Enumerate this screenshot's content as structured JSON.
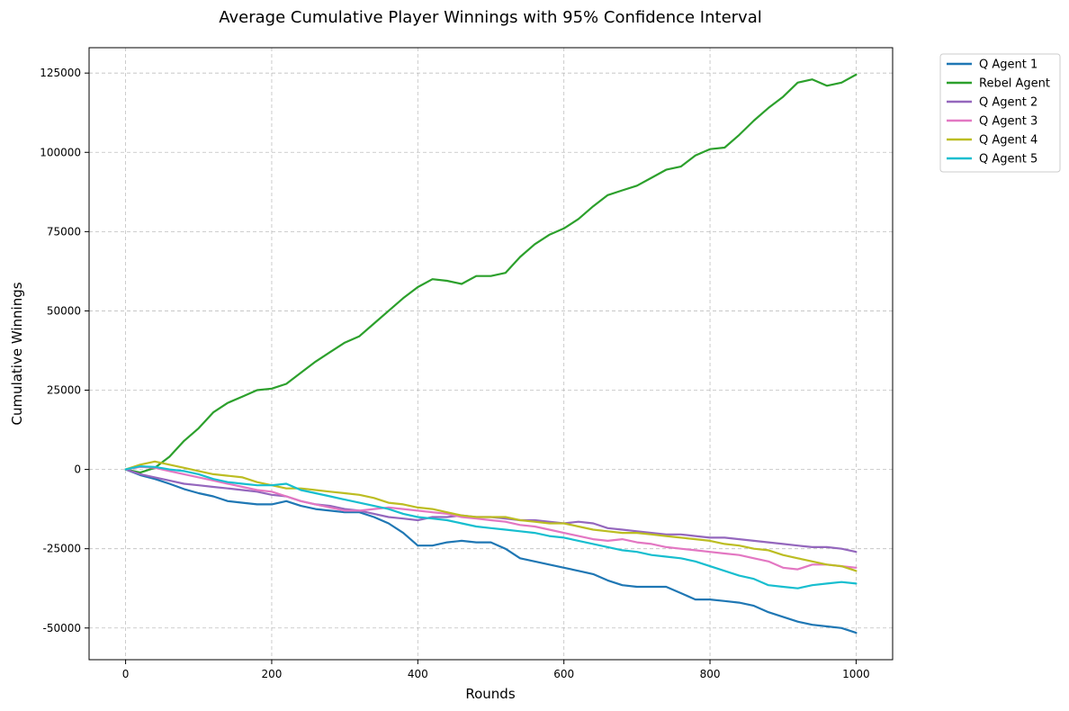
{
  "chart_data": {
    "type": "line",
    "title": "Average Cumulative Player Winnings with 95% Confidence Interval",
    "xlabel": "Rounds",
    "ylabel": "Cumulative Winnings",
    "xlim": [
      -50,
      1050
    ],
    "ylim": [
      -60000,
      133000
    ],
    "xticks": [
      0,
      200,
      400,
      600,
      800,
      1000
    ],
    "yticks": [
      -50000,
      -25000,
      0,
      25000,
      50000,
      75000,
      100000,
      125000
    ],
    "grid": true,
    "legend_position": "outside-top-right",
    "series": [
      {
        "name": "Q Agent 1",
        "color": "#1f77b4",
        "x": [
          0,
          20,
          40,
          60,
          80,
          100,
          120,
          140,
          160,
          180,
          200,
          220,
          240,
          260,
          280,
          300,
          320,
          340,
          360,
          380,
          400,
          420,
          440,
          460,
          480,
          500,
          520,
          540,
          560,
          580,
          600,
          620,
          640,
          660,
          680,
          700,
          720,
          740,
          760,
          780,
          800,
          820,
          840,
          860,
          880,
          900,
          920,
          940,
          960,
          980,
          1000
        ],
        "y": [
          0,
          -1800,
          -3000,
          -4500,
          -6200,
          -7500,
          -8500,
          -10000,
          -10500,
          -11000,
          -11000,
          -10000,
          -11500,
          -12500,
          -13000,
          -13500,
          -13500,
          -15000,
          -17000,
          -20000,
          -24000,
          -24000,
          -23000,
          -22500,
          -23000,
          -23000,
          -25000,
          -28000,
          -29000,
          -30000,
          -31000,
          -32000,
          -33000,
          -35000,
          -36500,
          -37000,
          -37000,
          -37000,
          -39000,
          -41000,
          -41000,
          -41500,
          -42000,
          -43000,
          -45000,
          -46500,
          -48000,
          -49000,
          -49500,
          -50000,
          -51500
        ]
      },
      {
        "name": "Rebel Agent",
        "color": "#2ca02c",
        "x": [
          0,
          20,
          40,
          60,
          80,
          100,
          120,
          140,
          160,
          180,
          200,
          220,
          240,
          260,
          280,
          300,
          320,
          340,
          360,
          380,
          400,
          420,
          440,
          460,
          480,
          500,
          520,
          540,
          560,
          580,
          600,
          620,
          640,
          660,
          680,
          700,
          720,
          740,
          760,
          780,
          800,
          820,
          840,
          860,
          880,
          900,
          920,
          940,
          960,
          980,
          1000
        ],
        "y": [
          0,
          -1000,
          500,
          4000,
          9000,
          13000,
          18000,
          21000,
          23000,
          25000,
          25500,
          27000,
          30500,
          34000,
          37000,
          40000,
          42000,
          46000,
          50000,
          54000,
          57500,
          60000,
          59500,
          58500,
          61000,
          61000,
          62000,
          67000,
          71000,
          74000,
          76000,
          79000,
          83000,
          86500,
          88000,
          89500,
          92000,
          94500,
          95500,
          99000,
          101000,
          101500,
          105500,
          110000,
          114000,
          117500,
          122000,
          123000,
          121000,
          122000,
          124500
        ]
      },
      {
        "name": "Q Agent 2",
        "color": "#9467bd",
        "x": [
          0,
          20,
          40,
          60,
          80,
          100,
          120,
          140,
          160,
          180,
          200,
          220,
          240,
          260,
          280,
          300,
          320,
          340,
          360,
          380,
          400,
          420,
          440,
          460,
          480,
          500,
          520,
          540,
          560,
          580,
          600,
          620,
          640,
          660,
          680,
          700,
          720,
          740,
          760,
          780,
          800,
          820,
          840,
          860,
          880,
          900,
          920,
          940,
          960,
          980,
          1000
        ],
        "y": [
          0,
          -1500,
          -2500,
          -3500,
          -4500,
          -5000,
          -5500,
          -6000,
          -6500,
          -7000,
          -8000,
          -8500,
          -10000,
          -11000,
          -11500,
          -12500,
          -13000,
          -14000,
          -15000,
          -15500,
          -16000,
          -15000,
          -15000,
          -14500,
          -15000,
          -15000,
          -15500,
          -16000,
          -16000,
          -16500,
          -17000,
          -16500,
          -17000,
          -18500,
          -19000,
          -19500,
          -20000,
          -20500,
          -20500,
          -21000,
          -21500,
          -21500,
          -22000,
          -22500,
          -23000,
          -23500,
          -24000,
          -24500,
          -24500,
          -25000,
          -26000
        ]
      },
      {
        "name": "Q Agent 3",
        "color": "#e377c2",
        "x": [
          0,
          20,
          40,
          60,
          80,
          100,
          120,
          140,
          160,
          180,
          200,
          220,
          240,
          260,
          280,
          300,
          320,
          340,
          360,
          380,
          400,
          420,
          440,
          460,
          480,
          500,
          520,
          540,
          560,
          580,
          600,
          620,
          640,
          660,
          680,
          700,
          720,
          740,
          760,
          780,
          800,
          820,
          840,
          860,
          880,
          900,
          920,
          940,
          960,
          980,
          1000
        ],
        "y": [
          0,
          800,
          500,
          -500,
          -1500,
          -2500,
          -3500,
          -4500,
          -5500,
          -6500,
          -7000,
          -8500,
          -10000,
          -11000,
          -12000,
          -13000,
          -13000,
          -12500,
          -12000,
          -12500,
          -13000,
          -13500,
          -14000,
          -15000,
          -15500,
          -16000,
          -16500,
          -17500,
          -18000,
          -19000,
          -20000,
          -21000,
          -22000,
          -22500,
          -22000,
          -23000,
          -23500,
          -24500,
          -25000,
          -25500,
          -26000,
          -26500,
          -27000,
          -28000,
          -29000,
          -31000,
          -31500,
          -30000,
          -30000,
          -30500,
          -31000
        ]
      },
      {
        "name": "Q Agent 4",
        "color": "#bcbd22",
        "x": [
          0,
          20,
          40,
          60,
          80,
          100,
          120,
          140,
          160,
          180,
          200,
          220,
          240,
          260,
          280,
          300,
          320,
          340,
          360,
          380,
          400,
          420,
          440,
          460,
          480,
          500,
          520,
          540,
          560,
          580,
          600,
          620,
          640,
          660,
          680,
          700,
          720,
          740,
          760,
          780,
          800,
          820,
          840,
          860,
          880,
          900,
          920,
          940,
          960,
          980,
          1000
        ],
        "y": [
          0,
          1500,
          2500,
          1500,
          500,
          -500,
          -1500,
          -2000,
          -2500,
          -4000,
          -5000,
          -6000,
          -6000,
          -6500,
          -7000,
          -7500,
          -8000,
          -9000,
          -10500,
          -11000,
          -12000,
          -12500,
          -13500,
          -14500,
          -15000,
          -15000,
          -15000,
          -16000,
          -16500,
          -17000,
          -17000,
          -18000,
          -19000,
          -19500,
          -20000,
          -20000,
          -20500,
          -21000,
          -21500,
          -22000,
          -22500,
          -23500,
          -24000,
          -25000,
          -25500,
          -27000,
          -28000,
          -29000,
          -30000,
          -30500,
          -32000
        ]
      },
      {
        "name": "Q Agent 5",
        "color": "#17becf",
        "x": [
          0,
          20,
          40,
          60,
          80,
          100,
          120,
          140,
          160,
          180,
          200,
          220,
          240,
          260,
          280,
          300,
          320,
          340,
          360,
          380,
          400,
          420,
          440,
          460,
          480,
          500,
          520,
          540,
          560,
          580,
          600,
          620,
          640,
          660,
          680,
          700,
          720,
          740,
          760,
          780,
          800,
          820,
          840,
          860,
          880,
          900,
          920,
          940,
          960,
          980,
          1000
        ],
        "y": [
          0,
          1000,
          800,
          0,
          -500,
          -1500,
          -3000,
          -4000,
          -4500,
          -5000,
          -5000,
          -4500,
          -6500,
          -7500,
          -8500,
          -9500,
          -10500,
          -11500,
          -12500,
          -14000,
          -15000,
          -15500,
          -16000,
          -17000,
          -18000,
          -18500,
          -19000,
          -19500,
          -20000,
          -21000,
          -21500,
          -22500,
          -23500,
          -24500,
          -25500,
          -26000,
          -27000,
          -27500,
          -28000,
          -29000,
          -30500,
          -32000,
          -33500,
          -34500,
          -36500,
          -37000,
          -37500,
          -36500,
          -36000,
          -35500,
          -36000
        ]
      }
    ]
  }
}
